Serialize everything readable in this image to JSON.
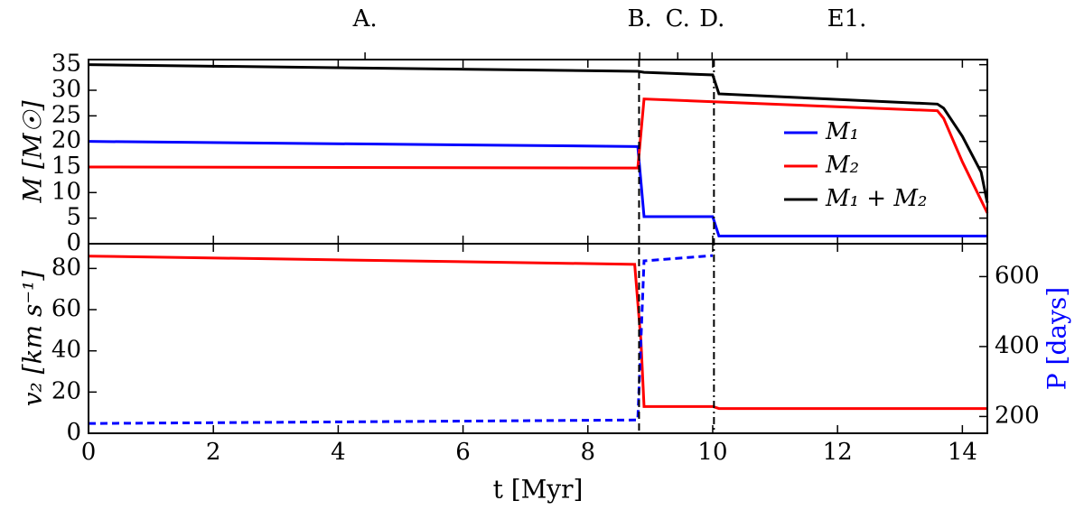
{
  "chart_data": [
    {
      "type": "line",
      "ylabel": "M [M☉]",
      "ylim": [
        0,
        36
      ],
      "yticks": [
        0,
        5,
        10,
        15,
        20,
        25,
        30,
        35
      ],
      "legend": "right",
      "series": [
        {
          "name": "M₁",
          "color": "#0000ff",
          "style": "solid",
          "x": [
            0,
            8.8,
            8.9,
            10.0,
            10.1,
            14.4
          ],
          "values": [
            20,
            19,
            5.3,
            5.3,
            1.5,
            1.5
          ]
        },
        {
          "name": "M₂",
          "color": "#ff0000",
          "style": "solid",
          "x": [
            0,
            8.8,
            8.9,
            13.6,
            13.7,
            14.0,
            14.2,
            14.4
          ],
          "values": [
            15,
            14.8,
            28.3,
            26,
            24.5,
            16,
            11,
            6
          ]
        },
        {
          "name": "M₁ + M₂",
          "color": "#000000",
          "style": "solid",
          "x": [
            0,
            8.8,
            8.9,
            10.0,
            10.1,
            13.6,
            13.7,
            14.0,
            14.3,
            14.4
          ],
          "values": [
            35,
            33.7,
            33.5,
            33,
            29.3,
            27.3,
            26.5,
            21,
            14,
            8
          ]
        }
      ],
      "annotations": [
        {
          "text": "A.",
          "x": 4.43
        },
        {
          "text": "B.",
          "x": 8.83
        },
        {
          "text": "C.",
          "x": 9.44
        },
        {
          "text": "D.",
          "x": 9.99
        },
        {
          "text": "E1.",
          "x": 12.15
        }
      ],
      "vlines": [
        {
          "x": 8.82,
          "style": "dashed"
        },
        {
          "x": 10.02,
          "style": "dashdot"
        }
      ]
    },
    {
      "type": "line",
      "xlabel": "t [Myr]",
      "ylabel": "v₂ [km s⁻¹]",
      "y2label": "P [days]",
      "xlim": [
        0,
        14.4
      ],
      "xticks": [
        0,
        2,
        4,
        6,
        8,
        10,
        12,
        14
      ],
      "ylim": [
        0,
        92
      ],
      "yticks": [
        0,
        20,
        40,
        60,
        80
      ],
      "y2lim": [
        152,
        694
      ],
      "y2ticks": [
        200,
        400,
        600
      ],
      "series": [
        {
          "name": "v₂",
          "color": "#ff0000",
          "style": "solid",
          "x": [
            0,
            8.75,
            8.85,
            8.9,
            10.0,
            10.1,
            14.4
          ],
          "values": [
            86,
            82,
            45,
            13,
            13,
            12,
            12
          ]
        },
        {
          "name": "P",
          "color": "#0000ff",
          "style": "dashed",
          "axis": "y2",
          "x": [
            0,
            8.8,
            8.9,
            10.0
          ],
          "values": [
            180,
            190,
            645,
            660
          ]
        }
      ]
    }
  ]
}
